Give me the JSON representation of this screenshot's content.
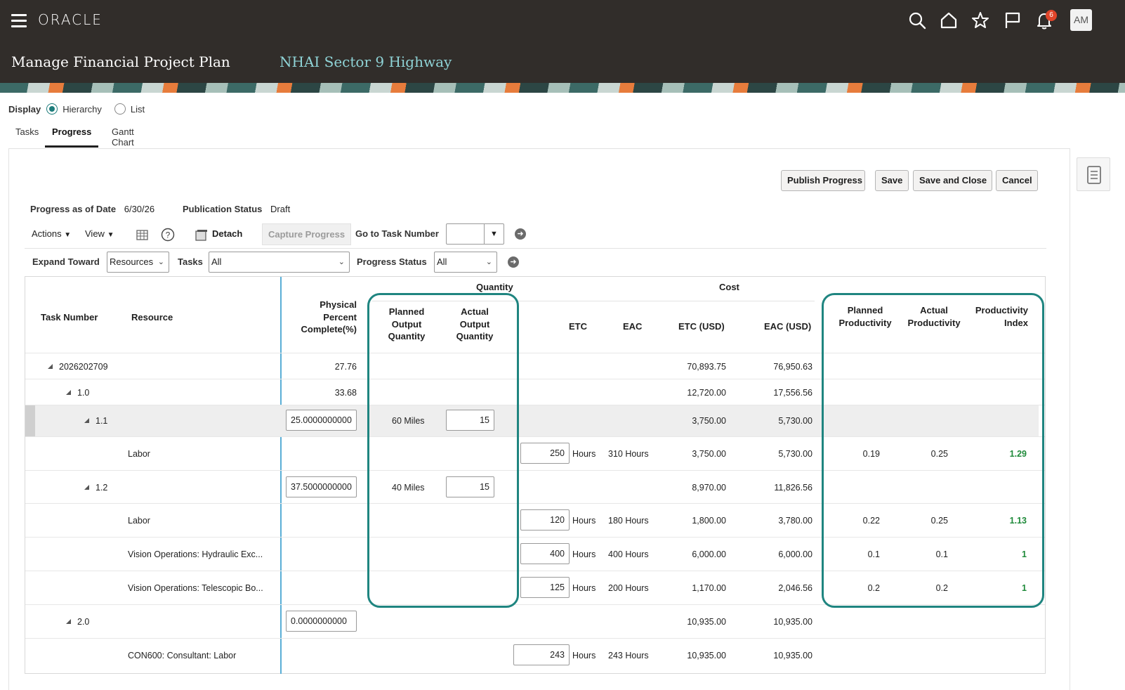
{
  "header": {
    "logo": "ORACLE",
    "page_title": "Manage Financial Project Plan",
    "project_name": "NHAI Sector 9 Highway",
    "notification_count": "6",
    "avatar_initials": "AM",
    "icons": [
      "menu-icon",
      "search-icon",
      "home-icon",
      "star-icon",
      "flag-icon",
      "bell-icon"
    ]
  },
  "display": {
    "label": "Display",
    "options": [
      {
        "label": "Hierarchy",
        "selected": true
      },
      {
        "label": "List",
        "selected": false
      }
    ]
  },
  "tabs": [
    {
      "label": "Tasks",
      "active": false
    },
    {
      "label": "Progress",
      "active": true
    },
    {
      "label": "Gantt Chart",
      "active": false
    }
  ],
  "buttons": {
    "publish": "Publish Progress",
    "save": "Save",
    "save_close": "Save and Close",
    "cancel": "Cancel"
  },
  "meta": {
    "progress_date_label": "Progress as of Date",
    "progress_date": "6/30/26",
    "publication_status_label": "Publication Status",
    "publication_status": "Draft"
  },
  "toolbar": {
    "actions": "Actions",
    "view": "View",
    "detach": "Detach",
    "capture_progress": "Capture Progress",
    "go_to_task": "Go to Task Number",
    "go_to_task_value": ""
  },
  "filters": {
    "expand_label": "Expand Toward",
    "expand_value": "Resources",
    "tasks_label": "Tasks",
    "tasks_value": "All",
    "status_label": "Progress Status",
    "status_value": "All"
  },
  "table": {
    "group_headers": {
      "quantity": "Quantity",
      "cost": "Cost"
    },
    "columns": {
      "task_number": "Task Number",
      "resource": "Resource",
      "physical": [
        "Physical",
        "Percent",
        "Complete(%)"
      ],
      "planned_output": [
        "Planned",
        "Output",
        "Quantity"
      ],
      "actual_output": [
        "Actual",
        "Output",
        "Quantity"
      ],
      "etc": "ETC",
      "eac": "EAC",
      "etc_usd": "ETC (USD)",
      "eac_usd": "EAC (USD)",
      "planned_productivity": [
        "Planned",
        "Productivity"
      ],
      "actual_productivity": [
        "Actual",
        "Productivity"
      ],
      "productivity_index": [
        "Productivity",
        "Index"
      ]
    },
    "rows": [
      {
        "task": "2026202709",
        "level": 0,
        "pct": "27.76",
        "etc_usd": "70,893.75",
        "eac_usd": "76,950.63"
      },
      {
        "task": "1.0",
        "level": 1,
        "pct": "33.68",
        "etc_usd": "12,720.00",
        "eac_usd": "17,556.56"
      },
      {
        "task": "1.1",
        "level": 2,
        "pct_input": "25.0000000000",
        "planned_output": "60 Miles",
        "actual_output": "15",
        "etc_usd": "3,750.00",
        "eac_usd": "5,730.00",
        "selected": true
      },
      {
        "resource": "Labor",
        "etc": "250",
        "etc_unit": "Hours",
        "eac": "310 Hours",
        "etc_usd": "3,750.00",
        "eac_usd": "5,730.00",
        "planned_prod": "0.19",
        "actual_prod": "0.25",
        "index": "1.29"
      },
      {
        "task": "1.2",
        "level": 2,
        "pct_input": "37.5000000000",
        "planned_output": "40 Miles",
        "actual_output": "15",
        "etc_usd": "8,970.00",
        "eac_usd": "11,826.56"
      },
      {
        "resource": "Labor",
        "etc": "120",
        "etc_unit": "Hours",
        "eac": "180 Hours",
        "etc_usd": "1,800.00",
        "eac_usd": "3,780.00",
        "planned_prod": "0.22",
        "actual_prod": "0.25",
        "index": "1.13"
      },
      {
        "resource": "Vision Operations: Hydraulic Exc...",
        "etc": "400",
        "etc_unit": "Hours",
        "eac": "400 Hours",
        "etc_usd": "6,000.00",
        "eac_usd": "6,000.00",
        "planned_prod": "0.1",
        "actual_prod": "0.1",
        "index": "1"
      },
      {
        "resource": "Vision Operations: Telescopic Bo...",
        "etc": "125",
        "etc_unit": "Hours",
        "eac": "200 Hours",
        "etc_usd": "1,170.00",
        "eac_usd": "2,046.56",
        "planned_prod": "0.2",
        "actual_prod": "0.2",
        "index": "1"
      },
      {
        "task": "2.0",
        "level": 1,
        "pct_input": "0.0000000000",
        "etc_usd": "10,935.00",
        "eac_usd": "10,935.00"
      },
      {
        "resource": "CON600: Consultant: Labor",
        "etc": "243",
        "etc_unit": "Hours",
        "eac": "243 Hours",
        "etc_usd": "10,935.00",
        "eac_usd": "10,935.00"
      }
    ]
  },
  "colors": {
    "header_bg": "#312d2a",
    "accent_teal": "#1f8580",
    "index_green": "#1f8a3a",
    "project_name": "#8fd3d6"
  }
}
